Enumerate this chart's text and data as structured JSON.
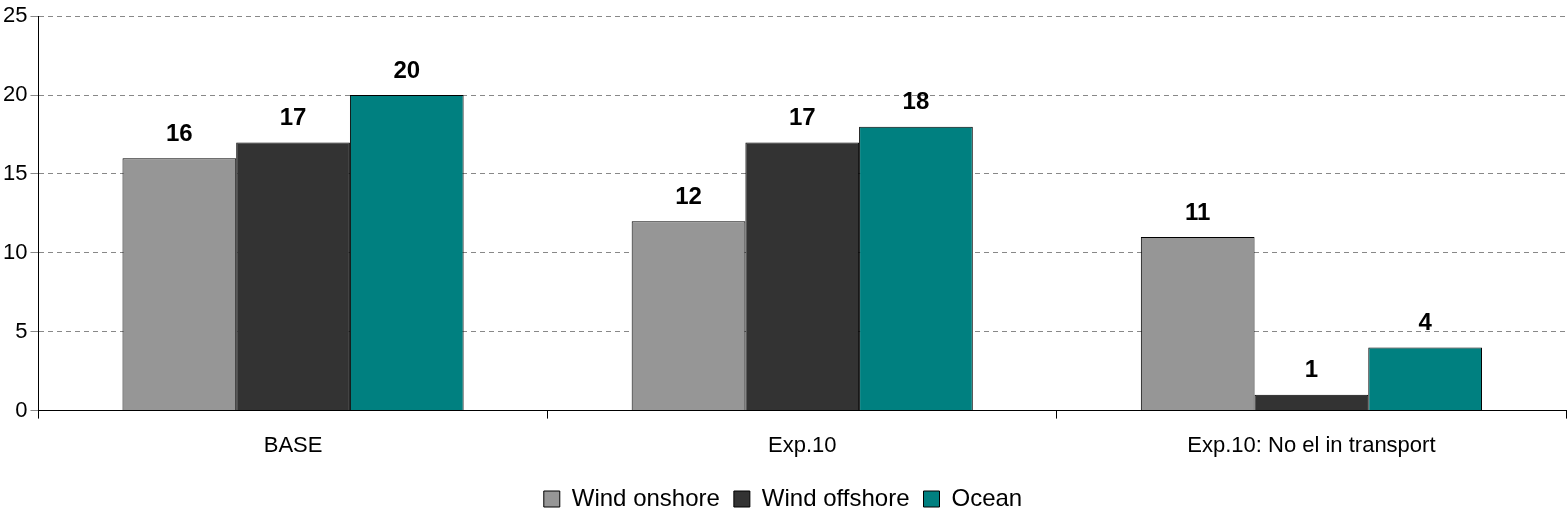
{
  "chart_data": {
    "type": "bar",
    "categories": [
      "BASE",
      "Exp.10",
      "Exp.10: No el in transport"
    ],
    "series": [
      {
        "name": "Wind onshore",
        "color": "#969696",
        "values": [
          16,
          12,
          11
        ]
      },
      {
        "name": "Wind offshore",
        "color": "#333333",
        "values": [
          17,
          17,
          1
        ]
      },
      {
        "name": "Ocean",
        "color": "#008080",
        "values": [
          20,
          18,
          4
        ]
      }
    ],
    "ylim": [
      0,
      25
    ],
    "yticks": [
      0,
      5,
      10,
      15,
      20,
      25
    ],
    "grid": "y",
    "legend": "bottom",
    "data_labels": true
  }
}
